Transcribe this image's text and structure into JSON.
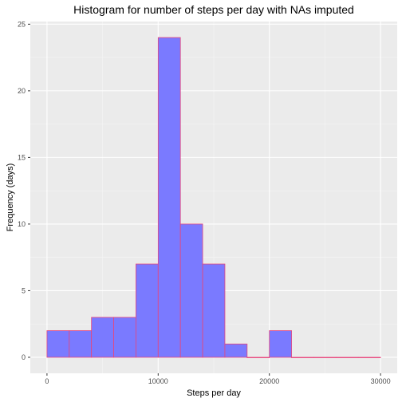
{
  "chart_data": {
    "type": "bar",
    "title": "Histogram for number of steps per day with NAs imputed",
    "xlabel": "Steps per day",
    "ylabel": "Frequency (days)",
    "bin_width": 2000,
    "bins": [
      {
        "x0": 0,
        "x1": 2000,
        "count": 2
      },
      {
        "x0": 2000,
        "x1": 4000,
        "count": 2
      },
      {
        "x0": 4000,
        "x1": 6000,
        "count": 3
      },
      {
        "x0": 6000,
        "x1": 8000,
        "count": 3
      },
      {
        "x0": 8000,
        "x1": 10000,
        "count": 7
      },
      {
        "x0": 10000,
        "x1": 12000,
        "count": 24
      },
      {
        "x0": 12000,
        "x1": 14000,
        "count": 10
      },
      {
        "x0": 14000,
        "x1": 16000,
        "count": 7
      },
      {
        "x0": 16000,
        "x1": 18000,
        "count": 1
      },
      {
        "x0": 18000,
        "x1": 20000,
        "count": 0
      },
      {
        "x0": 20000,
        "x1": 22000,
        "count": 2
      },
      {
        "x0": 22000,
        "x1": 24000,
        "count": 0
      },
      {
        "x0": 24000,
        "x1": 26000,
        "count": 0
      },
      {
        "x0": 26000,
        "x1": 28000,
        "count": 0
      },
      {
        "x0": 28000,
        "x1": 30000,
        "count": 0
      }
    ],
    "xlim": [
      -1500,
      31500
    ],
    "ylim": [
      -1.2,
      25.2
    ],
    "x_ticks": [
      0,
      10000,
      20000,
      30000
    ],
    "x_tick_labels": [
      "0",
      "10000",
      "20000",
      "30000"
    ],
    "y_ticks": [
      0,
      5,
      10,
      15,
      20,
      25
    ],
    "y_tick_labels": [
      "0",
      "5",
      "10",
      "15",
      "20",
      "25"
    ],
    "grid": true,
    "colors": {
      "panel": "#ebebeb",
      "grid_major": "#ffffff",
      "bar_fill": "#7a7aff",
      "bar_stroke": "#e8457a",
      "tick": "#333333"
    }
  }
}
